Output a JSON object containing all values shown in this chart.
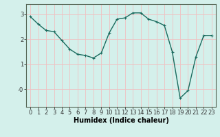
{
  "x": [
    0,
    1,
    2,
    3,
    4,
    5,
    6,
    7,
    8,
    9,
    10,
    11,
    12,
    13,
    14,
    15,
    16,
    17,
    18,
    19,
    20,
    21,
    22,
    23
  ],
  "y": [
    2.9,
    2.6,
    2.35,
    2.3,
    1.95,
    1.6,
    1.4,
    1.35,
    1.25,
    1.45,
    2.25,
    2.8,
    2.85,
    3.05,
    3.05,
    2.8,
    2.7,
    2.55,
    1.5,
    -0.35,
    -0.05,
    1.3,
    2.15,
    2.15
  ],
  "line_color": "#1a6b5e",
  "marker": "+",
  "marker_size": 3,
  "bg_color": "#d4f0eb",
  "grid_color": "#f0c0c0",
  "xlabel": "Humidex (Indice chaleur)",
  "xlabel_fontsize": 7,
  "xlim": [
    -0.5,
    23.5
  ],
  "ylim": [
    -0.7,
    3.4
  ],
  "ytick_labels": [
    "-0",
    "1",
    "2",
    "3"
  ],
  "ytick_vals": [
    0,
    1,
    2,
    3
  ],
  "xticks": [
    0,
    1,
    2,
    3,
    4,
    5,
    6,
    7,
    8,
    9,
    10,
    11,
    12,
    13,
    14,
    15,
    16,
    17,
    18,
    19,
    20,
    21,
    22,
    23
  ],
  "tick_fontsize": 6,
  "line_width": 1.0,
  "markeredgewidth": 0.8
}
